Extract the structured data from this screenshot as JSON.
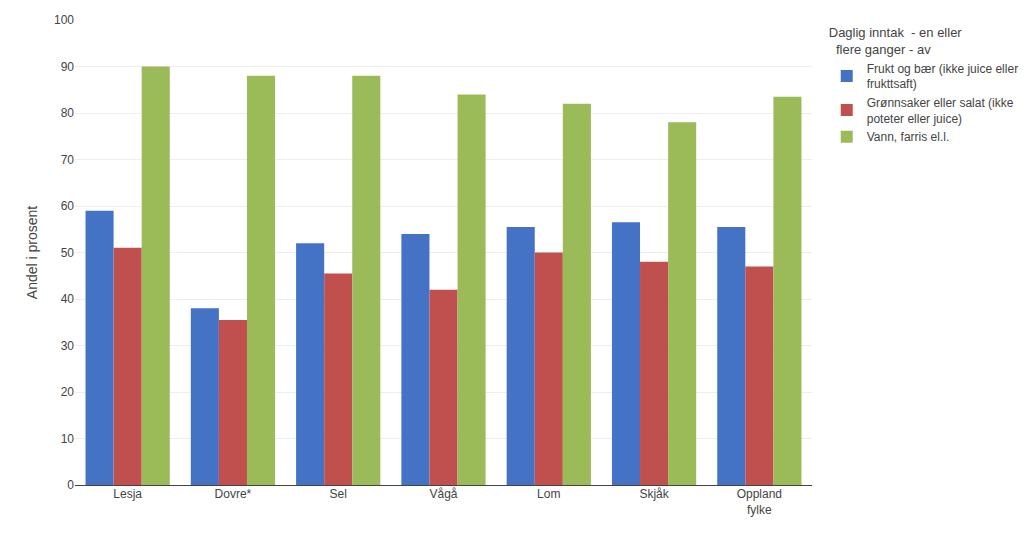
{
  "chart_data": {
    "type": "bar",
    "categories": [
      "Lesja",
      "Dovre*",
      "Sel",
      "Vågå",
      "Lom",
      "Skjåk",
      "Oppland\nfylke"
    ],
    "series": [
      {
        "name": "Frukt og bær (ikke juice eller\nfrukttsaft)",
        "color": "#4472C4",
        "values": [
          59,
          38,
          52,
          54,
          55.5,
          56.5,
          55.5
        ]
      },
      {
        "name": "Grønnsaker eller salat (ikke\npoteter eller juice)",
        "color": "#C0504D",
        "values": [
          51,
          35.5,
          45.5,
          42,
          50,
          48,
          47
        ]
      },
      {
        "name": "Vann, farris el.l.",
        "color": "#9BBB59",
        "values": [
          90,
          88,
          88,
          84,
          82,
          78,
          83.5
        ]
      }
    ],
    "ylabel": "Andel i prosent",
    "legend_title": "Daglig inntak  - en eller\n  flere ganger - av",
    "ylim": [
      0,
      100
    ],
    "yticks": [
      0,
      10,
      20,
      30,
      40,
      50,
      60,
      70,
      80,
      90,
      100
    ],
    "grid": true,
    "legend": "right"
  }
}
